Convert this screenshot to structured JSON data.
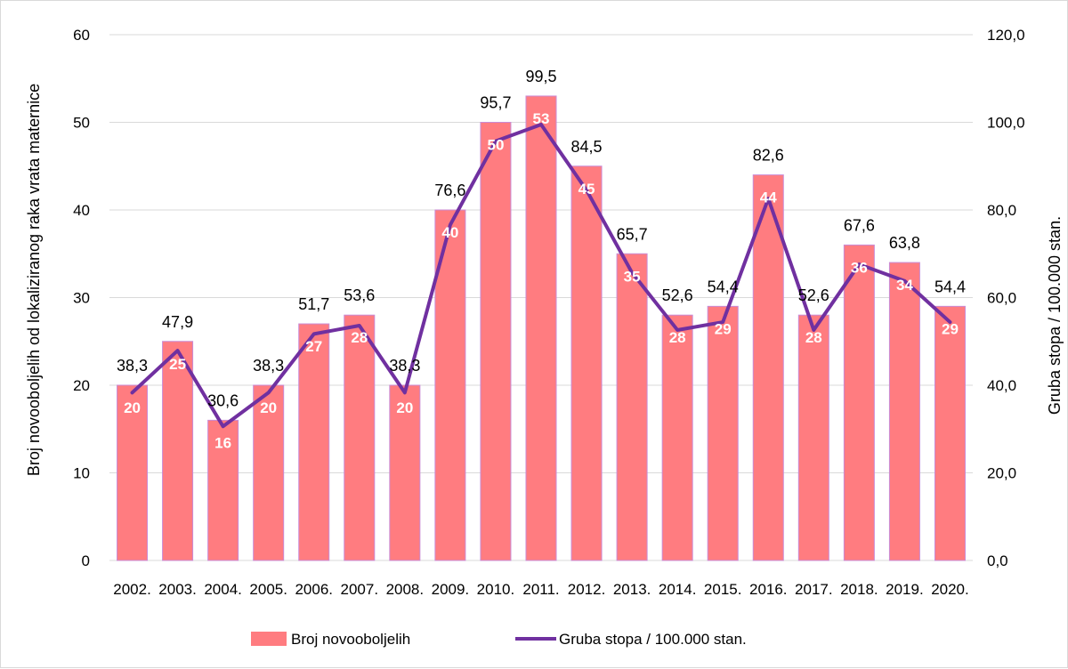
{
  "chart_data": {
    "type": "bar",
    "categories": [
      "2002.",
      "2003.",
      "2004.",
      "2005.",
      "2006.",
      "2007.",
      "2008.",
      "2009.",
      "2010.",
      "2011.",
      "2012.",
      "2013.",
      "2014.",
      "2015.",
      "2016.",
      "2017.",
      "2018.",
      "2019.",
      "2020."
    ],
    "series": [
      {
        "name": "Broj novooboljelih",
        "type": "bar",
        "axis": "left",
        "color": "#ff7c80",
        "values": [
          20,
          25,
          16,
          20,
          27,
          28,
          20,
          40,
          50,
          53,
          45,
          35,
          28,
          29,
          44,
          28,
          36,
          34,
          29
        ],
        "labels": [
          "20",
          "25",
          "16",
          "20",
          "27",
          "28",
          "20",
          "40",
          "50",
          "53",
          "45",
          "35",
          "28",
          "29",
          "44",
          "28",
          "36",
          "34",
          "29"
        ]
      },
      {
        "name": "Gruba stopa / 100.000 stan.",
        "type": "line",
        "axis": "right",
        "color": "#7030a0",
        "values": [
          38.3,
          47.9,
          30.6,
          38.3,
          51.7,
          53.6,
          38.3,
          76.6,
          95.7,
          99.5,
          84.5,
          65.7,
          52.6,
          54.4,
          82.6,
          52.6,
          67.6,
          63.8,
          54.4
        ],
        "labels": [
          "38,3",
          "47,9",
          "30,6",
          "38,3",
          "51,7",
          "53,6",
          "38,3",
          "76,6",
          "95,7",
          "99,5",
          "84,5",
          "65,7",
          "52,6",
          "54,4",
          "82,6",
          "52,6",
          "67,6",
          "63,8",
          "54,4"
        ]
      }
    ],
    "ylabel": "Broj novooboljelih od lokaliziranog raka vrata maternice",
    "y2label": "Gruba stopa / 100.000 stan.",
    "ylim": [
      0,
      60
    ],
    "y2lim": [
      0,
      120
    ],
    "yticks": [
      "0",
      "10",
      "20",
      "30",
      "40",
      "50",
      "60"
    ],
    "y2ticks": [
      "0,0",
      "20,0",
      "40,0",
      "60,0",
      "80,0",
      "100,0",
      "120,0"
    ],
    "grid": true,
    "legend_position": "bottom"
  }
}
